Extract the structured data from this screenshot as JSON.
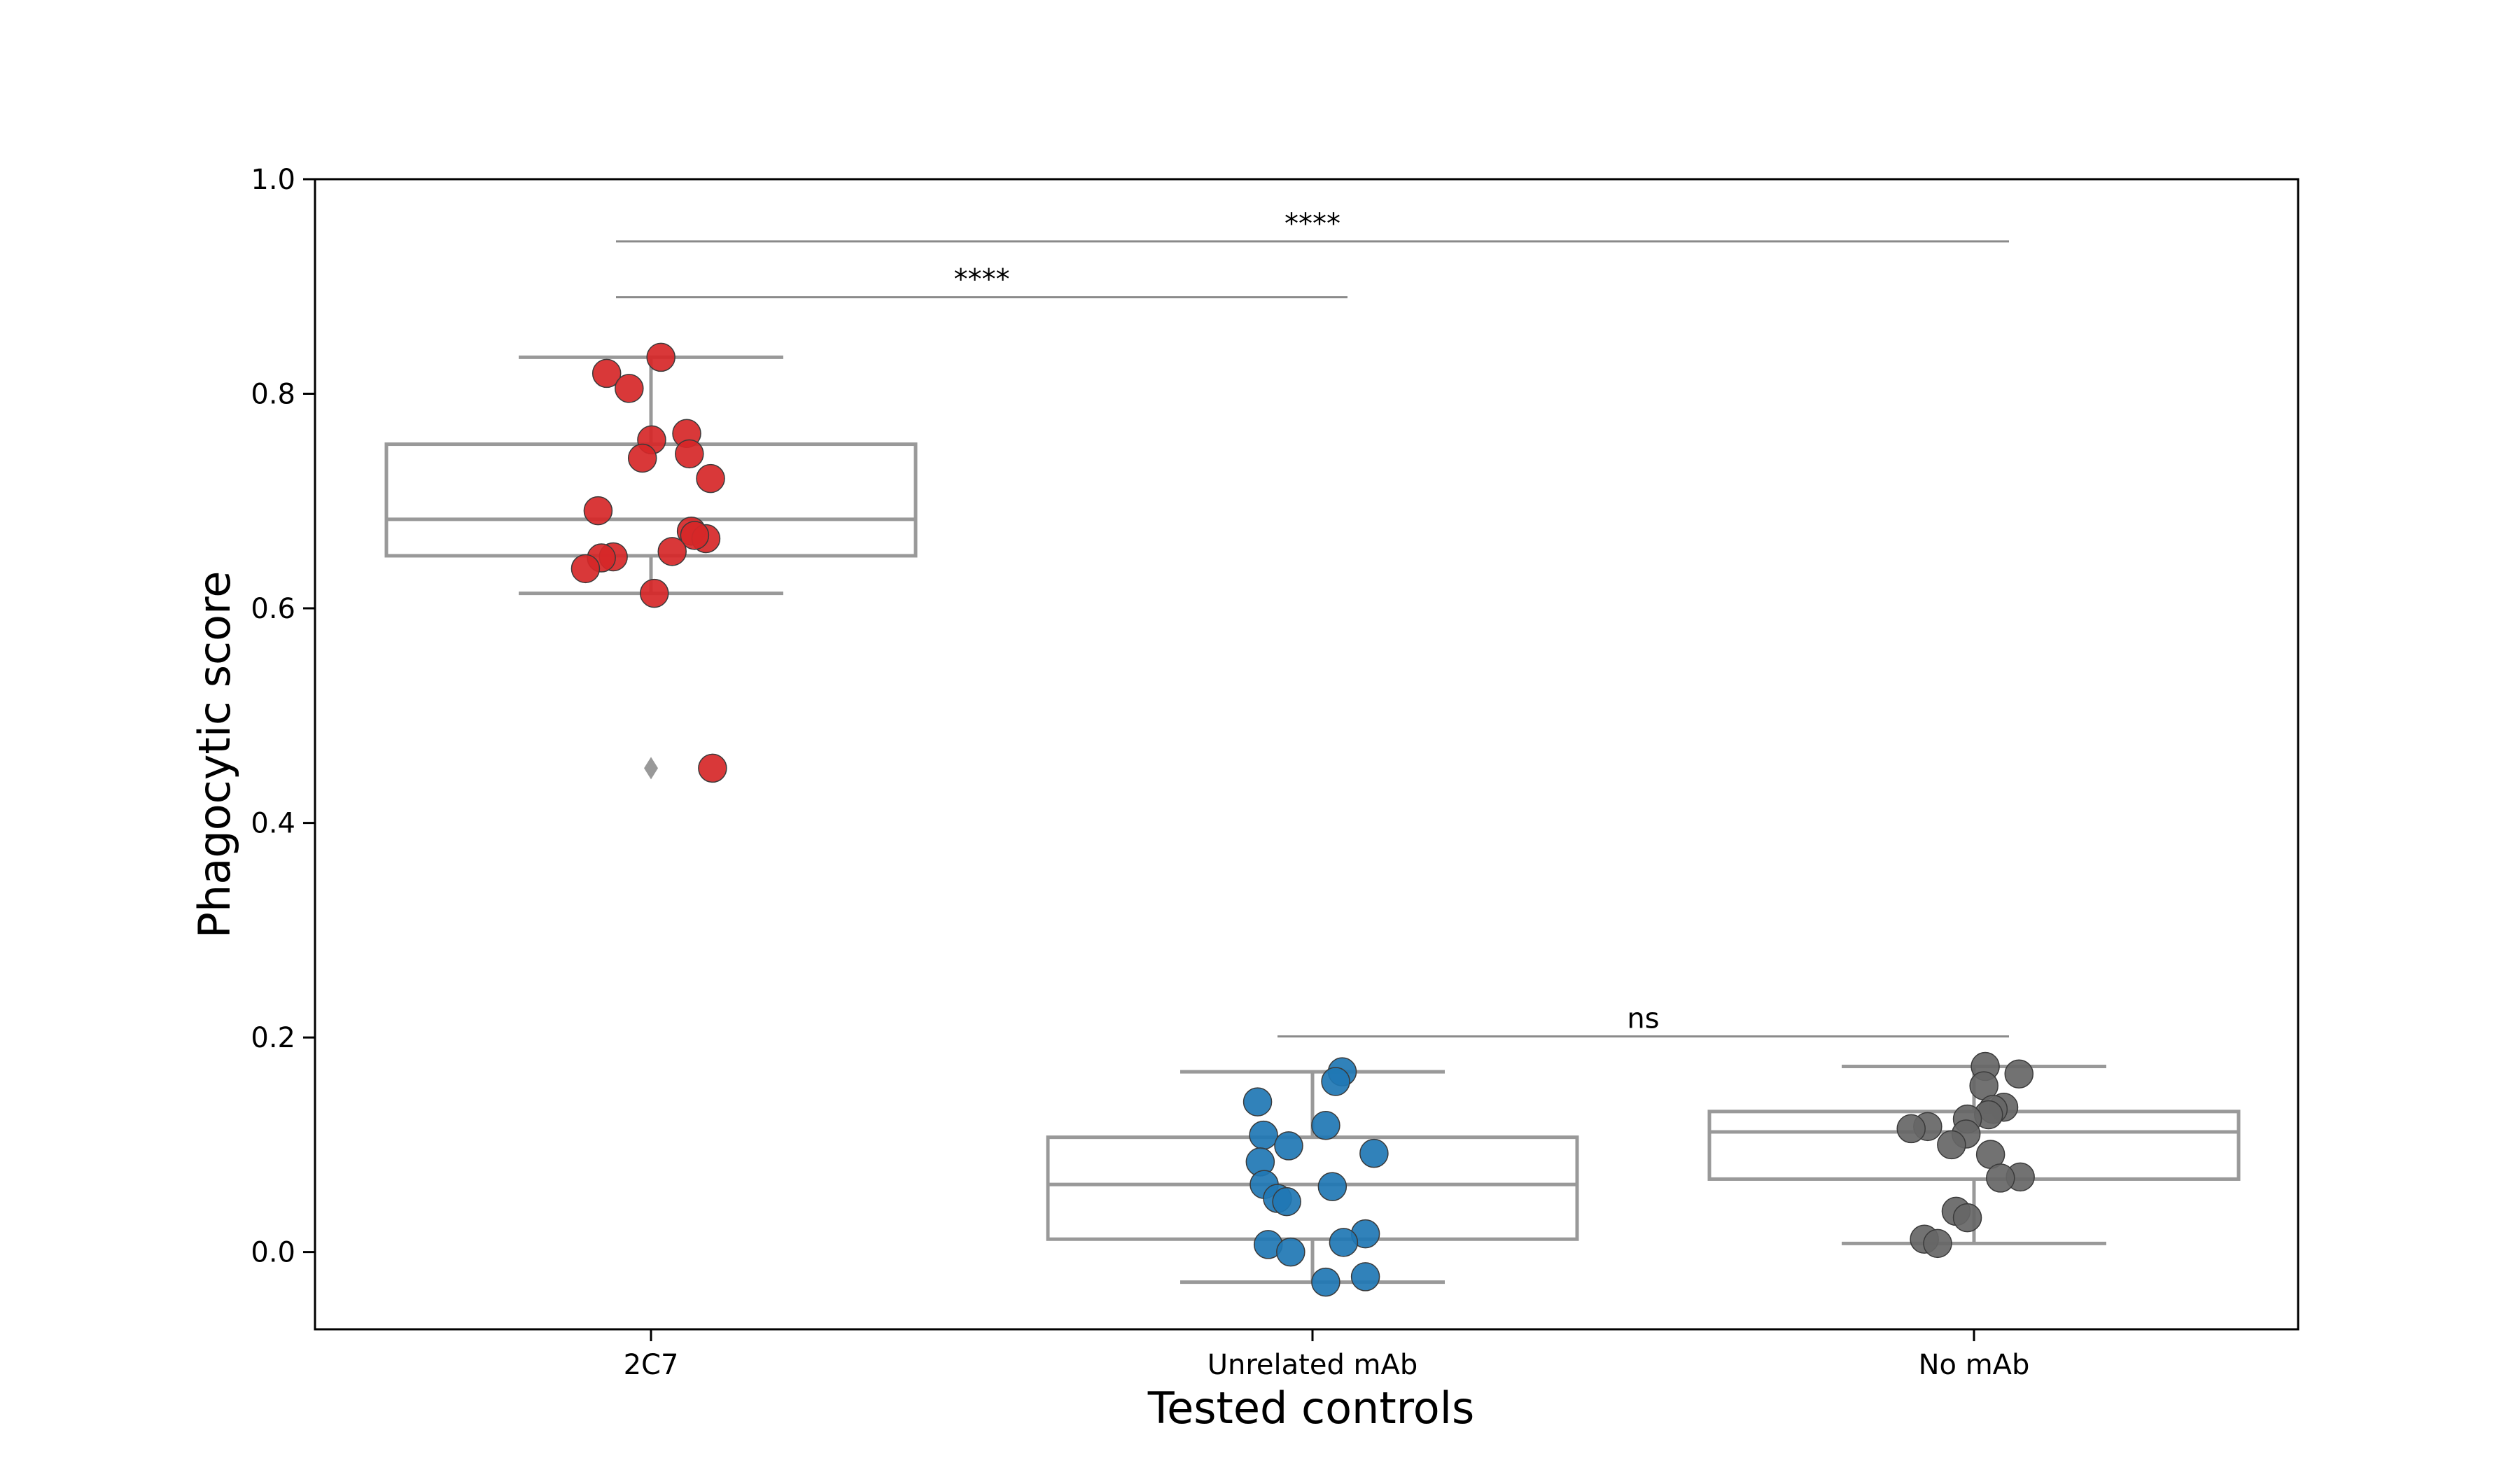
{
  "chart_data": {
    "type": "box",
    "xlabel": "Tested controls",
    "ylabel": "Phagocytic score",
    "ylim": [
      -0.072,
      1.0
    ],
    "yticks": [
      0.0,
      0.2,
      0.4,
      0.6,
      0.8,
      1.0
    ],
    "ytick_labels": [
      "0.0",
      "0.2",
      "0.4",
      "0.6",
      "0.8",
      "1.0"
    ],
    "grid": false,
    "legend": "none",
    "categories": [
      "2C7",
      "Unrelated mAb",
      "No mAb"
    ],
    "box_color": "#999999",
    "boxes": [
      {
        "q1": 0.649,
        "median": 0.683,
        "q3": 0.753,
        "whisker_low": 0.614,
        "whisker_high": 0.834,
        "outliers": [
          0.451
        ]
      },
      {
        "q1": 0.012,
        "median": 0.063,
        "q3": 0.107,
        "whisker_low": -0.028,
        "whisker_high": 0.168,
        "outliers": []
      },
      {
        "q1": 0.068,
        "median": 0.112,
        "q3": 0.131,
        "whisker_low": 0.008,
        "whisker_high": 0.173,
        "outliers": []
      }
    ],
    "series": [
      {
        "color": "#d62728",
        "values": [
          0.834,
          0.819,
          0.805,
          0.763,
          0.757,
          0.744,
          0.74,
          0.721,
          0.691,
          0.672,
          0.665,
          0.668,
          0.653,
          0.648,
          0.647,
          0.637,
          0.614,
          0.451
        ],
        "jitter": [
          0.015,
          -0.067,
          -0.033,
          0.054,
          0.001,
          0.058,
          -0.013,
          0.09,
          -0.08,
          0.061,
          0.083,
          0.066,
          0.032,
          -0.057,
          -0.075,
          -0.099,
          0.005,
          0.093
        ]
      },
      {
        "color": "#1f77b4",
        "values": [
          0.168,
          0.159,
          0.14,
          0.118,
          0.109,
          0.099,
          0.092,
          0.084,
          0.063,
          0.061,
          0.05,
          0.047,
          0.017,
          0.009,
          0.007,
          0.0,
          -0.023,
          -0.028
        ],
        "jitter": [
          0.045,
          0.035,
          -0.083,
          0.02,
          -0.074,
          -0.036,
          0.093,
          -0.079,
          -0.073,
          0.03,
          -0.053,
          -0.039,
          0.08,
          0.047,
          -0.067,
          -0.033,
          0.08,
          0.02
        ]
      },
      {
        "color": "#666666",
        "values": [
          0.173,
          0.166,
          0.155,
          0.135,
          0.133,
          0.128,
          0.124,
          0.117,
          0.115,
          0.11,
          0.1,
          0.091,
          0.07,
          0.069,
          0.038,
          0.032,
          0.012,
          0.008
        ],
        "jitter": [
          0.017,
          0.068,
          0.015,
          0.045,
          0.029,
          0.022,
          -0.01,
          -0.07,
          -0.095,
          -0.012,
          -0.034,
          0.025,
          0.07,
          0.04,
          -0.027,
          -0.01,
          -0.075,
          -0.055
        ]
      }
    ],
    "annotations": [
      {
        "label": "****",
        "from": 0,
        "to": 1,
        "y": 0.89
      },
      {
        "label": "****",
        "from": 0,
        "to": 2,
        "y": 0.942
      },
      {
        "label": "ns",
        "from": 1,
        "to": 2,
        "y": 0.201
      }
    ]
  }
}
